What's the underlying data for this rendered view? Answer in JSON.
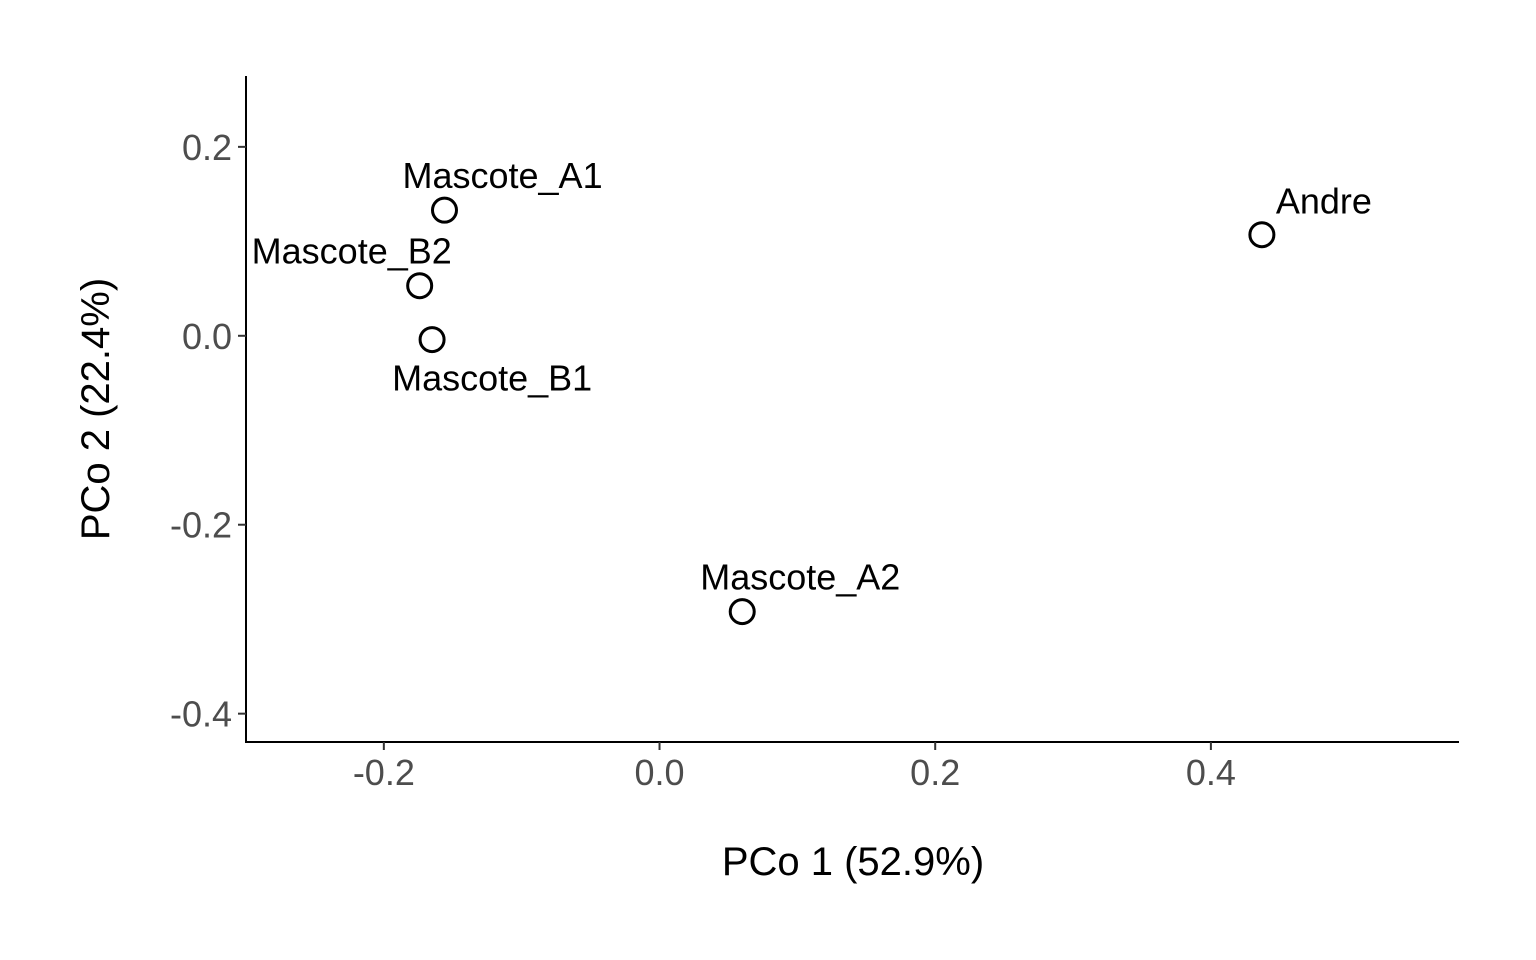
{
  "chart_data": {
    "type": "scatter",
    "title": "",
    "xlabel": "PCo 1 (52.9%)",
    "ylabel": "PCo 2 (22.4%)",
    "xlim": [
      -0.3,
      0.58
    ],
    "ylim": [
      -0.43,
      0.275
    ],
    "xticks": [
      -0.2,
      0.0,
      0.2,
      0.4
    ],
    "xtick_labels": [
      "-0.2",
      "0.0",
      "0.2",
      "0.4"
    ],
    "yticks": [
      -0.4,
      -0.2,
      0.0,
      0.2
    ],
    "ytick_labels": [
      "-0.4",
      "-0.2",
      "0.0",
      "0.2"
    ],
    "grid": false,
    "points": [
      {
        "label": "Mascote_A1",
        "x": -0.156,
        "y": 0.133,
        "label_pos": "above-right"
      },
      {
        "label": "Mascote_B2",
        "x": -0.174,
        "y": 0.053,
        "label_pos": "above-left"
      },
      {
        "label": "Mascote_B1",
        "x": -0.165,
        "y": -0.004,
        "label_pos": "below-right"
      },
      {
        "label": "Mascote_A2",
        "x": 0.06,
        "y": -0.292,
        "label_pos": "above-right"
      },
      {
        "label": "Andre",
        "x": 0.437,
        "y": 0.107,
        "label_pos": "above-right"
      }
    ]
  }
}
